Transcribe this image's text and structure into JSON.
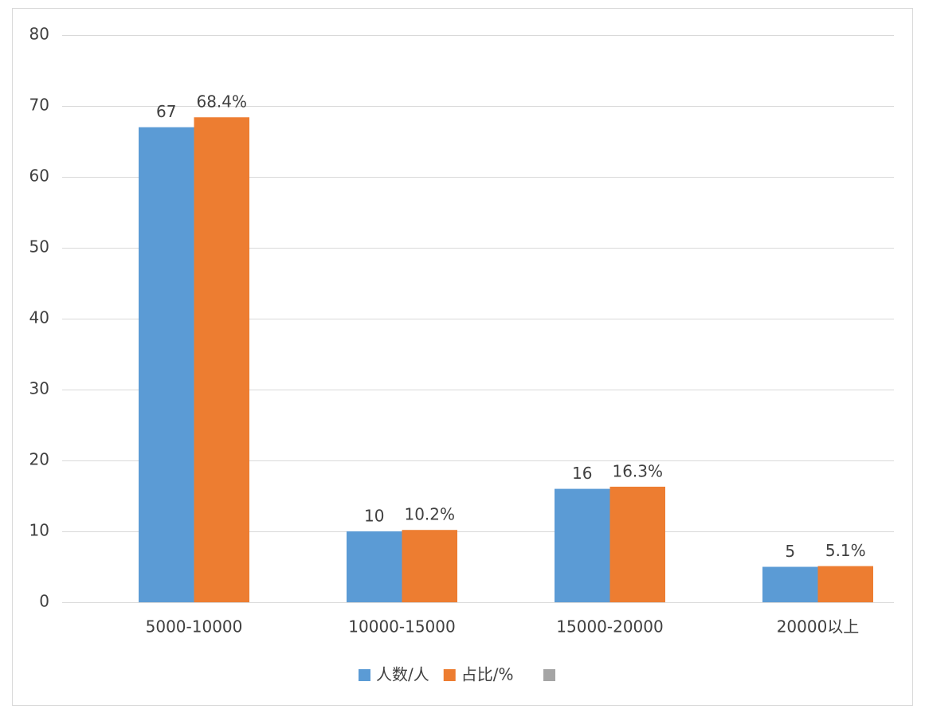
{
  "chart_data": {
    "type": "bar",
    "categories": [
      "5000-10000",
      "10000-15000",
      "15000-20000",
      "20000以上"
    ],
    "series": [
      {
        "name": "人数/人",
        "color": "#5b9bd5",
        "values": [
          67,
          10,
          16,
          5
        ]
      },
      {
        "name": "占比/%",
        "color": "#ed7d31",
        "values": [
          68.4,
          10.2,
          16.3,
          5.1
        ],
        "value_labels": [
          "68.4%",
          "10.2%",
          "16.3%",
          "5.1%"
        ]
      }
    ],
    "ylim": [
      0,
      80
    ],
    "yticks": [
      0,
      10,
      20,
      30,
      40,
      50,
      60,
      70,
      80
    ],
    "grid": true,
    "legend": "bottom"
  }
}
